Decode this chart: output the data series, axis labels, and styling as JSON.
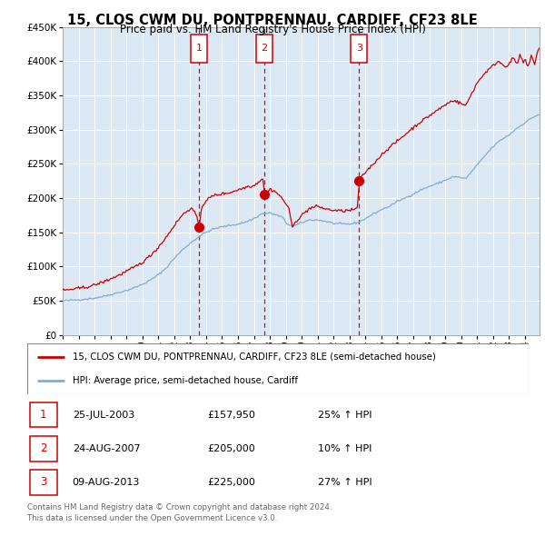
{
  "title": "15, CLOS CWM DU, PONTPRENNAU, CARDIFF, CF23 8LE",
  "subtitle": "Price paid vs. HM Land Registry's House Price Index (HPI)",
  "plot_bg_color": "#dce9f5",
  "red_line_color": "#cc0000",
  "blue_line_color": "#88aacc",
  "marker_color": "#cc0000",
  "dashed_line_color": "#cc0000",
  "annotation_box_color": "#cc0000",
  "footnote_color": "#666666",
  "purchases": [
    {
      "date_num": 2003.56,
      "price": 157950,
      "label": "1"
    },
    {
      "date_num": 2007.65,
      "price": 205000,
      "label": "2"
    },
    {
      "date_num": 2013.6,
      "price": 225000,
      "label": "3"
    }
  ],
  "table_rows": [
    {
      "label": "1",
      "date": "25-JUL-2003",
      "price": "£157,950",
      "change": "25% ↑ HPI"
    },
    {
      "label": "2",
      "date": "24-AUG-2007",
      "price": "£205,000",
      "change": "10% ↑ HPI"
    },
    {
      "label": "3",
      "date": "09-AUG-2013",
      "price": "£225,000",
      "change": "27% ↑ HPI"
    }
  ],
  "legend_entries": [
    "15, CLOS CWM DU, PONTPRENNAU, CARDIFF, CF23 8LE (semi-detached house)",
    "HPI: Average price, semi-detached house, Cardiff"
  ],
  "footnote": "Contains HM Land Registry data © Crown copyright and database right 2024.\nThis data is licensed under the Open Government Licence v3.0.",
  "ylim": [
    0,
    450000
  ],
  "ylim_display_max": 450000,
  "xlim_start": 1995.0,
  "xlim_end": 2024.92,
  "hpi_anchors": [
    [
      1995.0,
      50000
    ],
    [
      1995.5,
      50500
    ],
    [
      1996.0,
      51500
    ],
    [
      1996.5,
      52500
    ],
    [
      1997.0,
      54000
    ],
    [
      1997.5,
      56000
    ],
    [
      1998.0,
      59000
    ],
    [
      1998.5,
      62000
    ],
    [
      1999.0,
      65000
    ],
    [
      1999.5,
      69000
    ],
    [
      2000.0,
      74000
    ],
    [
      2000.5,
      80000
    ],
    [
      2001.0,
      88000
    ],
    [
      2001.5,
      98000
    ],
    [
      2002.0,
      112000
    ],
    [
      2002.5,
      124000
    ],
    [
      2003.0,
      134000
    ],
    [
      2003.5,
      143000
    ],
    [
      2004.0,
      150000
    ],
    [
      2004.5,
      155000
    ],
    [
      2005.0,
      158000
    ],
    [
      2005.5,
      160000
    ],
    [
      2006.0,
      162000
    ],
    [
      2006.5,
      165000
    ],
    [
      2007.0,
      170000
    ],
    [
      2007.5,
      177000
    ],
    [
      2008.0,
      178000
    ],
    [
      2008.3,
      176000
    ],
    [
      2008.8,
      172000
    ],
    [
      2009.0,
      164000
    ],
    [
      2009.3,
      160000
    ],
    [
      2009.6,
      160000
    ],
    [
      2010.0,
      164000
    ],
    [
      2010.5,
      168000
    ],
    [
      2011.0,
      168000
    ],
    [
      2011.5,
      166000
    ],
    [
      2012.0,
      163000
    ],
    [
      2012.5,
      162000
    ],
    [
      2013.0,
      162000
    ],
    [
      2013.5,
      164000
    ],
    [
      2014.0,
      170000
    ],
    [
      2014.5,
      177000
    ],
    [
      2015.0,
      183000
    ],
    [
      2015.5,
      188000
    ],
    [
      2016.0,
      195000
    ],
    [
      2016.5,
      200000
    ],
    [
      2017.0,
      206000
    ],
    [
      2017.5,
      212000
    ],
    [
      2018.0,
      217000
    ],
    [
      2018.5,
      221000
    ],
    [
      2019.0,
      226000
    ],
    [
      2019.5,
      231000
    ],
    [
      2020.0,
      230000
    ],
    [
      2020.3,
      228000
    ],
    [
      2020.6,
      237000
    ],
    [
      2021.0,
      248000
    ],
    [
      2021.5,
      262000
    ],
    [
      2022.0,
      275000
    ],
    [
      2022.5,
      285000
    ],
    [
      2023.0,
      292000
    ],
    [
      2023.5,
      302000
    ],
    [
      2024.0,
      310000
    ],
    [
      2024.5,
      318000
    ],
    [
      2024.9,
      322000
    ]
  ],
  "price_anchors": [
    [
      1995.0,
      65000
    ],
    [
      1995.5,
      66500
    ],
    [
      1996.0,
      68000
    ],
    [
      1996.5,
      70000
    ],
    [
      1997.0,
      73000
    ],
    [
      1997.5,
      77000
    ],
    [
      1998.0,
      82000
    ],
    [
      1998.5,
      87000
    ],
    [
      1999.0,
      93000
    ],
    [
      1999.5,
      99000
    ],
    [
      2000.0,
      106000
    ],
    [
      2000.5,
      116000
    ],
    [
      2001.0,
      128000
    ],
    [
      2001.5,
      143000
    ],
    [
      2002.0,
      160000
    ],
    [
      2002.5,
      175000
    ],
    [
      2003.0,
      185000
    ],
    [
      2003.3,
      180000
    ],
    [
      2003.56,
      157950
    ],
    [
      2003.7,
      185000
    ],
    [
      2004.0,
      197000
    ],
    [
      2004.5,
      204000
    ],
    [
      2005.0,
      206000
    ],
    [
      2005.5,
      208000
    ],
    [
      2006.0,
      212000
    ],
    [
      2006.3,
      214000
    ],
    [
      2006.6,
      217000
    ],
    [
      2007.0,
      218000
    ],
    [
      2007.2,
      222000
    ],
    [
      2007.4,
      226000
    ],
    [
      2007.6,
      229000
    ],
    [
      2007.65,
      205000
    ],
    [
      2007.8,
      208000
    ],
    [
      2008.0,
      213000
    ],
    [
      2008.3,
      210000
    ],
    [
      2008.6,
      204000
    ],
    [
      2009.0,
      192000
    ],
    [
      2009.2,
      185000
    ],
    [
      2009.4,
      156000
    ],
    [
      2009.6,
      165000
    ],
    [
      2009.8,
      170000
    ],
    [
      2010.0,
      175000
    ],
    [
      2010.5,
      185000
    ],
    [
      2011.0,
      188000
    ],
    [
      2011.5,
      184000
    ],
    [
      2012.0,
      182000
    ],
    [
      2012.5,
      181000
    ],
    [
      2013.0,
      182000
    ],
    [
      2013.3,
      183000
    ],
    [
      2013.5,
      186000
    ],
    [
      2013.6,
      225000
    ],
    [
      2013.8,
      232000
    ],
    [
      2014.0,
      238000
    ],
    [
      2014.5,
      250000
    ],
    [
      2015.0,
      263000
    ],
    [
      2015.5,
      274000
    ],
    [
      2016.0,
      283000
    ],
    [
      2016.5,
      293000
    ],
    [
      2017.0,
      303000
    ],
    [
      2017.5,
      312000
    ],
    [
      2018.0,
      320000
    ],
    [
      2018.5,
      328000
    ],
    [
      2019.0,
      336000
    ],
    [
      2019.5,
      343000
    ],
    [
      2020.0,
      338000
    ],
    [
      2020.3,
      335000
    ],
    [
      2020.6,
      350000
    ],
    [
      2021.0,
      368000
    ],
    [
      2021.5,
      383000
    ],
    [
      2022.0,
      393000
    ],
    [
      2022.3,
      400000
    ],
    [
      2022.5,
      397000
    ],
    [
      2022.8,
      392000
    ],
    [
      2023.0,
      396000
    ],
    [
      2023.3,
      405000
    ],
    [
      2023.5,
      395000
    ],
    [
      2023.7,
      408000
    ],
    [
      2023.9,
      398000
    ],
    [
      2024.0,
      403000
    ],
    [
      2024.2,
      390000
    ],
    [
      2024.4,
      408000
    ],
    [
      2024.6,
      395000
    ],
    [
      2024.8,
      415000
    ],
    [
      2024.9,
      418000
    ]
  ],
  "noise_seed": 42,
  "hpi_noise_std": 700,
  "price_noise_std": 1100
}
